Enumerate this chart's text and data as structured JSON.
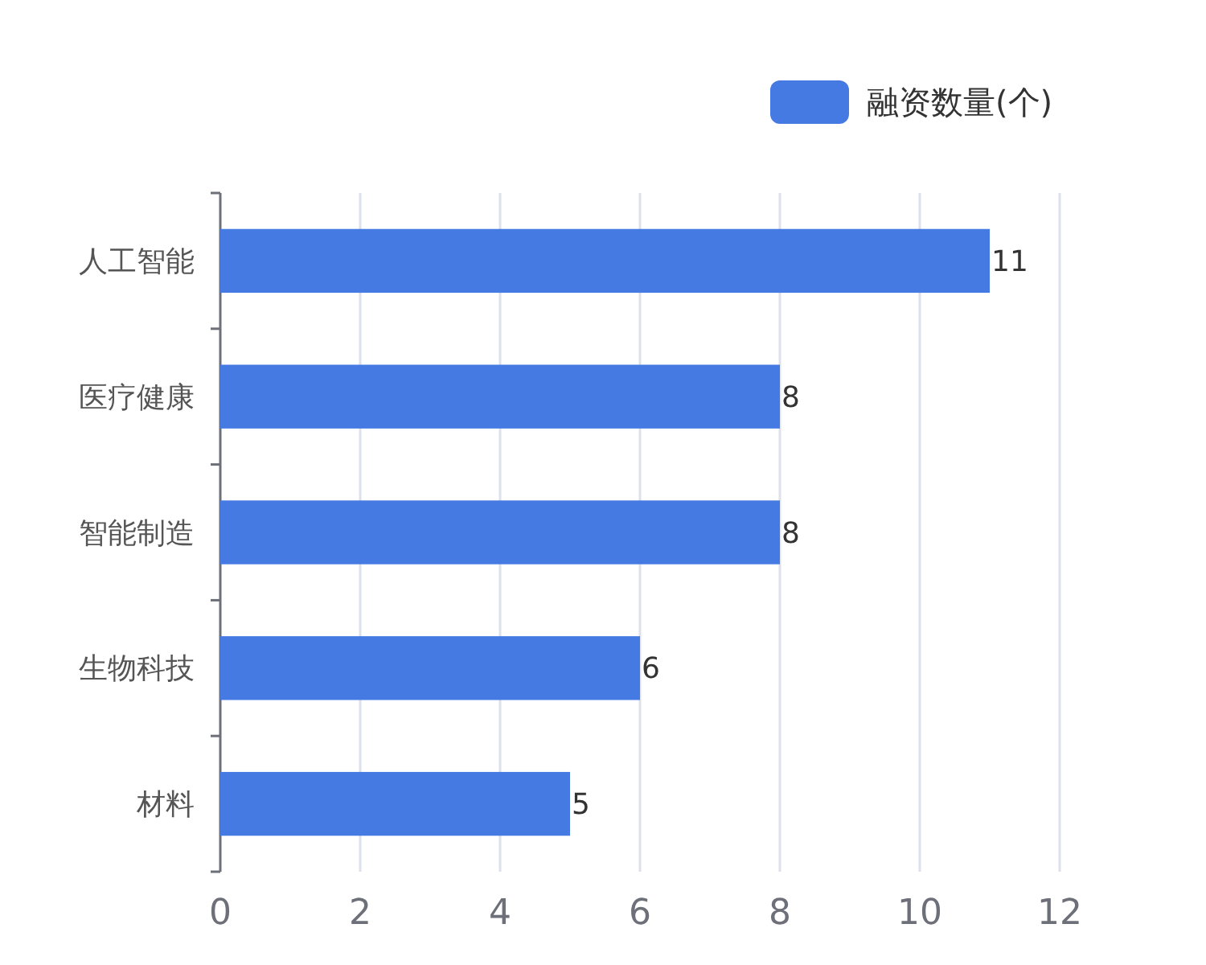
{
  "chart_data": {
    "type": "bar",
    "orientation": "horizontal",
    "categories": [
      "人工智能",
      "医疗健康",
      "智能制造",
      "生物科技",
      "材料"
    ],
    "series": [
      {
        "name": "融资数量(个)",
        "color": "#447ae2",
        "values": [
          11,
          8,
          8,
          6,
          5
        ]
      }
    ],
    "xlim": [
      0,
      12
    ],
    "xticks": [
      0,
      2,
      4,
      6,
      8,
      10,
      12
    ],
    "grid": "x",
    "legend": "top right",
    "data_labels": true
  }
}
